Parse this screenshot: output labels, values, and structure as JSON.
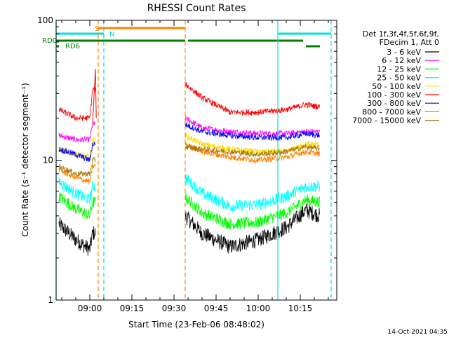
{
  "chart_data": {
    "type": "line",
    "title": "RHESSI Count Rates",
    "xlabel": "Start Time (23-Feb-06 08:48:02)",
    "ylabel": "Count Rate (s⁻¹ detector segment⁻¹)",
    "x_scale": "time",
    "y_scale": "log",
    "xlim": [
      "08:48",
      "10:28"
    ],
    "ylim": [
      1,
      100
    ],
    "x_ticks": [
      "09:00",
      "09:15",
      "09:30",
      "09:45",
      "10:00",
      "10:15"
    ],
    "y_ticks": [
      "1",
      "10",
      "100"
    ],
    "legend_position": "right",
    "legend_header": [
      "Det 1f,3f,4f,5f,6f,9f,",
      "FDecim 1, Att 0"
    ],
    "series": [
      {
        "name": "3 - 6 keV",
        "color": "#000000",
        "values": [
          {
            "t": "08:49",
            "y": 3.5
          },
          {
            "t": "08:55",
            "y": 2.7
          },
          {
            "t": "09:00",
            "y": 2.3
          },
          {
            "t": "09:01",
            "y": 3.0
          },
          {
            "t": "09:34",
            "y": 4.0
          },
          {
            "t": "09:40",
            "y": 3.0
          },
          {
            "t": "09:50",
            "y": 2.4
          },
          {
            "t": "10:00",
            "y": 2.7
          },
          {
            "t": "10:10",
            "y": 3.3
          },
          {
            "t": "10:17",
            "y": 4.4
          },
          {
            "t": "10:22",
            "y": 4.0
          }
        ]
      },
      {
        "name": "6 - 12 keV",
        "color": "#ff00ff",
        "values": [
          {
            "t": "08:49",
            "y": 15
          },
          {
            "t": "08:55",
            "y": 14
          },
          {
            "t": "09:00",
            "y": 14
          },
          {
            "t": "09:01",
            "y": 18
          },
          {
            "t": "09:34",
            "y": 20
          },
          {
            "t": "09:40",
            "y": 17
          },
          {
            "t": "09:50",
            "y": 16
          },
          {
            "t": "10:00",
            "y": 15.5
          },
          {
            "t": "10:10",
            "y": 15.5
          },
          {
            "t": "10:17",
            "y": 16
          },
          {
            "t": "10:22",
            "y": 16
          }
        ]
      },
      {
        "name": "12 - 25 keV",
        "color": "#00ff00",
        "values": [
          {
            "t": "08:49",
            "y": 5.5
          },
          {
            "t": "08:55",
            "y": 4.5
          },
          {
            "t": "09:00",
            "y": 4.0
          },
          {
            "t": "09:01",
            "y": 5.0
          },
          {
            "t": "09:34",
            "y": 5.5
          },
          {
            "t": "09:40",
            "y": 4.2
          },
          {
            "t": "09:50",
            "y": 3.5
          },
          {
            "t": "10:00",
            "y": 3.6
          },
          {
            "t": "10:10",
            "y": 4.2
          },
          {
            "t": "10:17",
            "y": 5.2
          },
          {
            "t": "10:22",
            "y": 5.0
          }
        ]
      },
      {
        "name": "25 - 50 keV",
        "color": "#00ffff",
        "values": [
          {
            "t": "08:49",
            "y": 7
          },
          {
            "t": "08:55",
            "y": 5.8
          },
          {
            "t": "09:00",
            "y": 5.2
          },
          {
            "t": "09:01",
            "y": 6.5
          },
          {
            "t": "09:34",
            "y": 7.5
          },
          {
            "t": "09:40",
            "y": 5.8
          },
          {
            "t": "09:50",
            "y": 4.7
          },
          {
            "t": "10:00",
            "y": 4.8
          },
          {
            "t": "10:10",
            "y": 5.5
          },
          {
            "t": "10:17",
            "y": 6.5
          },
          {
            "t": "10:22",
            "y": 6.5
          }
        ]
      },
      {
        "name": "50 - 100 keV",
        "color": "#ffdd00",
        "values": [
          {
            "t": "08:49",
            "y": 12
          },
          {
            "t": "08:55",
            "y": 11
          },
          {
            "t": "09:00",
            "y": 10.5
          },
          {
            "t": "09:01",
            "y": 14
          },
          {
            "t": "09:34",
            "y": 15
          },
          {
            "t": "09:40",
            "y": 13
          },
          {
            "t": "09:50",
            "y": 12
          },
          {
            "t": "10:00",
            "y": 11.5
          },
          {
            "t": "10:10",
            "y": 11.5
          },
          {
            "t": "10:17",
            "y": 13
          },
          {
            "t": "10:22",
            "y": 13
          }
        ]
      },
      {
        "name": "100 - 300 keV",
        "color": "#ff0000",
        "values": [
          {
            "t": "08:49",
            "y": 23
          },
          {
            "t": "08:55",
            "y": 20
          },
          {
            "t": "09:00",
            "y": 20
          },
          {
            "t": "09:01",
            "y": 32
          },
          {
            "t": "09:34",
            "y": 35
          },
          {
            "t": "09:40",
            "y": 28
          },
          {
            "t": "09:50",
            "y": 22
          },
          {
            "t": "10:00",
            "y": 22
          },
          {
            "t": "10:10",
            "y": 23
          },
          {
            "t": "10:17",
            "y": 25
          },
          {
            "t": "10:22",
            "y": 24
          }
        ]
      },
      {
        "name": "300 - 800 keV",
        "color": "#0000ff",
        "values": [
          {
            "t": "08:49",
            "y": 12
          },
          {
            "t": "08:55",
            "y": 11
          },
          {
            "t": "09:00",
            "y": 10
          },
          {
            "t": "09:01",
            "y": 13
          },
          {
            "t": "09:34",
            "y": 18
          },
          {
            "t": "09:40",
            "y": 16
          },
          {
            "t": "09:50",
            "y": 15
          },
          {
            "t": "10:00",
            "y": 14.5
          },
          {
            "t": "10:10",
            "y": 14.5
          },
          {
            "t": "10:17",
            "y": 15.5
          },
          {
            "t": "10:22",
            "y": 15
          }
        ]
      },
      {
        "name": "800 - 7000 keV",
        "color": "#ff8000",
        "values": [
          {
            "t": "08:49",
            "y": 8.5
          },
          {
            "t": "08:55",
            "y": 7.5
          },
          {
            "t": "09:00",
            "y": 7.0
          },
          {
            "t": "09:01",
            "y": 9.0
          },
          {
            "t": "09:34",
            "y": 13
          },
          {
            "t": "09:40",
            "y": 11.5
          },
          {
            "t": "09:50",
            "y": 10.5
          },
          {
            "t": "10:00",
            "y": 10
          },
          {
            "t": "10:10",
            "y": 10.5
          },
          {
            "t": "10:17",
            "y": 11.5
          },
          {
            "t": "10:22",
            "y": 11
          }
        ]
      },
      {
        "name": "7000 - 15000 keV",
        "color": "#aa7700",
        "values": [
          {
            "t": "08:49",
            "y": 9
          },
          {
            "t": "08:55",
            "y": 8
          },
          {
            "t": "09:00",
            "y": 8
          },
          {
            "t": "09:01",
            "y": 10
          },
          {
            "t": "09:34",
            "y": 12.5
          },
          {
            "t": "09:40",
            "y": 12
          },
          {
            "t": "09:50",
            "y": 11.5
          },
          {
            "t": "10:00",
            "y": 11
          },
          {
            "t": "10:10",
            "y": 11.5
          },
          {
            "t": "10:17",
            "y": 12.5
          },
          {
            "t": "10:22",
            "y": 12
          }
        ]
      }
    ],
    "spike": {
      "t": "09:02",
      "y": 45
    },
    "vertical_lines": [
      {
        "t": "08:48",
        "color": "#00e0e0",
        "style": "solid"
      },
      {
        "t": "09:03",
        "color": "#ff8000",
        "style": "dashed"
      },
      {
        "t": "09:05",
        "color": "#00e0e0",
        "style": "dashed"
      },
      {
        "t": "09:34",
        "color": "#ff8000",
        "style": "dashed"
      },
      {
        "t": "10:07",
        "color": "#00e0e0",
        "style": "solid"
      },
      {
        "t": "10:26",
        "color": "#00e0e0",
        "style": "dashed"
      }
    ],
    "flag_bars": [
      {
        "label": "S",
        "color": "#ff8000",
        "segments": [
          [
            "09:03",
            "09:34"
          ]
        ]
      },
      {
        "label": "N",
        "color": "#00e0e0",
        "segments": [
          [
            "08:48",
            "09:05"
          ],
          [
            "10:07",
            "10:26"
          ]
        ]
      },
      {
        "label": "RD0",
        "color": "#008000",
        "segments": [
          [
            "08:48",
            "09:34"
          ],
          [
            "09:35",
            "10:16"
          ]
        ]
      },
      {
        "label": "RD6",
        "color": "#008000",
        "segments": [
          [
            "08:48",
            "08:49"
          ],
          [
            "10:17",
            "10:22"
          ]
        ]
      }
    ],
    "footer_date": "14-Oct-2021 04:35"
  }
}
